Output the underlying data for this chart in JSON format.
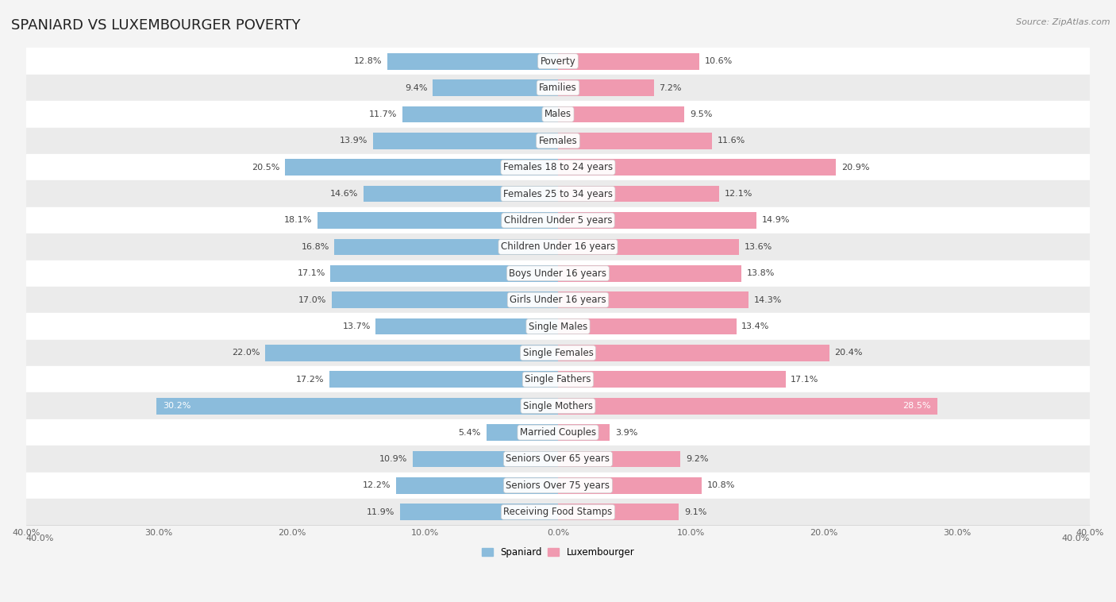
{
  "title": "SPANIARD VS LUXEMBOURGER POVERTY",
  "source": "Source: ZipAtlas.com",
  "categories": [
    "Poverty",
    "Families",
    "Males",
    "Females",
    "Females 18 to 24 years",
    "Females 25 to 34 years",
    "Children Under 5 years",
    "Children Under 16 years",
    "Boys Under 16 years",
    "Girls Under 16 years",
    "Single Males",
    "Single Females",
    "Single Fathers",
    "Single Mothers",
    "Married Couples",
    "Seniors Over 65 years",
    "Seniors Over 75 years",
    "Receiving Food Stamps"
  ],
  "spaniard": [
    12.8,
    9.4,
    11.7,
    13.9,
    20.5,
    14.6,
    18.1,
    16.8,
    17.1,
    17.0,
    13.7,
    22.0,
    17.2,
    30.2,
    5.4,
    10.9,
    12.2,
    11.9
  ],
  "luxembourger": [
    10.6,
    7.2,
    9.5,
    11.6,
    20.9,
    12.1,
    14.9,
    13.6,
    13.8,
    14.3,
    13.4,
    20.4,
    17.1,
    28.5,
    3.9,
    9.2,
    10.8,
    9.1
  ],
  "spaniard_color": "#8bbcdc",
  "luxembourger_color": "#f09ab0",
  "bar_height": 0.62,
  "xlim": 40.0,
  "background_color": "#f4f4f4",
  "row_color_light": "#ffffff",
  "row_color_dark": "#ebebeb",
  "title_fontsize": 13,
  "label_fontsize": 8.5,
  "value_fontsize": 8.0,
  "tick_fontsize": 8,
  "source_fontsize": 8
}
